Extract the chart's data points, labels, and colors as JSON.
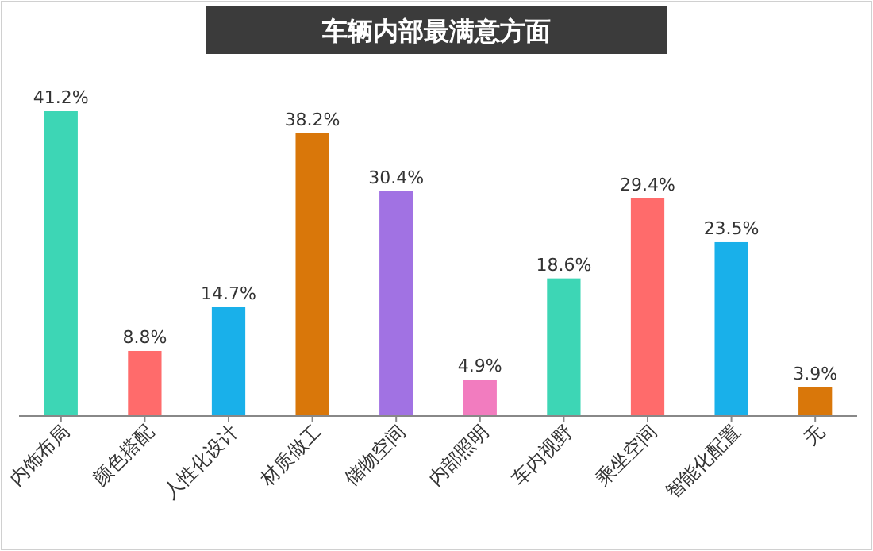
{
  "chart_data": {
    "type": "bar",
    "title": "车辆内部最满意方面",
    "categories": [
      "内饰布局",
      "颜色搭配",
      "人性化设计",
      "材质做工",
      "储物空间",
      "内部照明",
      "车内视野",
      "乘坐空间",
      "智能化配置",
      "无"
    ],
    "values": [
      41.2,
      8.8,
      14.7,
      38.2,
      30.4,
      4.9,
      18.6,
      29.4,
      23.5,
      3.9
    ],
    "colors": [
      "#3dd6b5",
      "#ff6b6b",
      "#19b0ea",
      "#d9770a",
      "#a172e3",
      "#f27cbf",
      "#3dd6b5",
      "#ff6b6b",
      "#19b0ea",
      "#d9770a"
    ],
    "value_labels": [
      "41.2%",
      "8.8%",
      "14.7%",
      "38.2%",
      "30.4%",
      "4.9%",
      "18.6%",
      "29.4%",
      "23.5%",
      "3.9%"
    ]
  }
}
